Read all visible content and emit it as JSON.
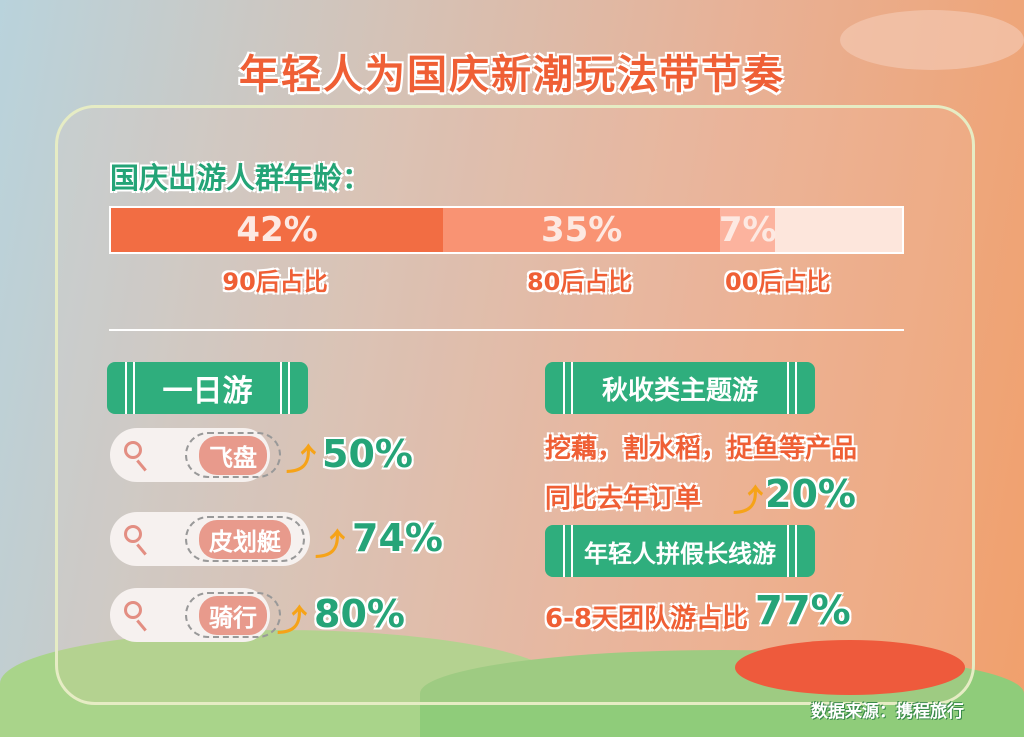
{
  "title": "年轻人为国庆新潮玩法带节奏",
  "age_section": {
    "heading": "国庆出游人群年龄："
  },
  "chart_data": {
    "type": "bar",
    "stacked": true,
    "orientation": "horizontal",
    "title": "国庆出游人群年龄：",
    "categories": [
      "90后占比",
      "80后占比",
      "00后占比"
    ],
    "values": [
      42,
      35,
      7
    ],
    "value_labels": [
      "42%",
      "35%",
      "7%"
    ],
    "colors": [
      "#f26d43",
      "#f99373",
      "#fcb39e"
    ],
    "remainder_color": "#fde6dc",
    "xlim": [
      0,
      100
    ]
  },
  "day_trip": {
    "heading": "一日游",
    "items": [
      {
        "tag": "飞盘",
        "change": "50%"
      },
      {
        "tag": "皮划艇",
        "change": "74%"
      },
      {
        "tag": "骑行",
        "change": "80%"
      }
    ]
  },
  "harvest": {
    "heading": "秋收类主题游",
    "line1": "挖藕，割水稻，捉鱼等产品",
    "line2": "同比去年订单",
    "change": "20%"
  },
  "long_trip": {
    "heading": "年轻人拼假长线游",
    "text": "6-8天团队游占比",
    "value": "77%"
  },
  "source": "数据来源：携程旅行",
  "icons": {
    "search": "magnifier-icon",
    "up": "up-arrow-icon"
  },
  "colors": {
    "accent": "#ef5f35",
    "green": "#2fae7d",
    "arrow": "#f6a318"
  }
}
